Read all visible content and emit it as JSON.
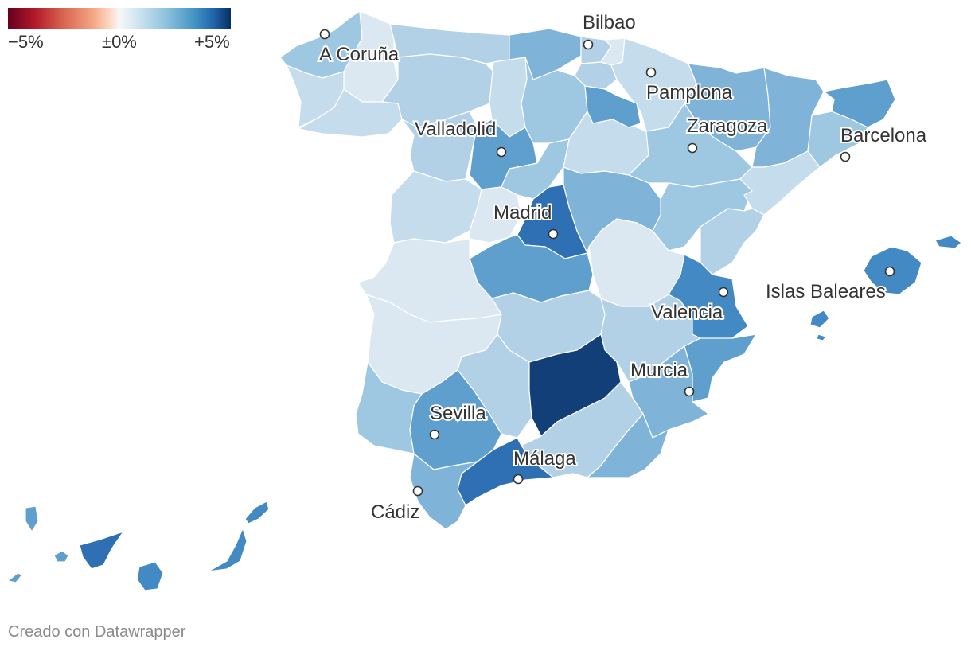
{
  "legend": {
    "min_label": "−5%",
    "mid_label": "±0%",
    "max_label": "+5%"
  },
  "colors": {
    "pale": "#dbe8f2",
    "light": "#c4dceb",
    "light2": "#b3d1e6",
    "medium": "#9ec7e2",
    "medium2": "#7fb4d8",
    "strong": "#5f9fcd",
    "strong2": "#4389c3",
    "deep": "#2f6fb3",
    "darkest": "#123f78",
    "city_dot_fill": "#ffffff",
    "credit": "#8a8a8a"
  },
  "cities": [
    {
      "name": "A Coruña"
    },
    {
      "name": "Bilbao"
    },
    {
      "name": "Pamplona"
    },
    {
      "name": "Valladolid"
    },
    {
      "name": "Zaragoza"
    },
    {
      "name": "Barcelona"
    },
    {
      "name": "Madrid"
    },
    {
      "name": "Islas Baleares"
    },
    {
      "name": "Valencia"
    },
    {
      "name": "Murcia"
    },
    {
      "name": "Sevilla"
    },
    {
      "name": "Málaga"
    },
    {
      "name": "Cádiz"
    }
  ],
  "footer": {
    "credit": "Creado con Datawrapper"
  }
}
